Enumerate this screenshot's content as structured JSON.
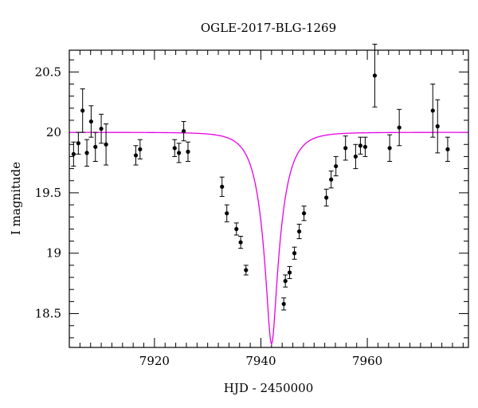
{
  "chart_data": {
    "type": "scatter",
    "title": "OGLE-2017-BLG-1269",
    "xlabel": "HJD - 2450000",
    "ylabel": "I magnitude",
    "xlim": [
      7904,
      7979
    ],
    "ylim": [
      20.68,
      18.22
    ],
    "y_inverted": true,
    "grid": false,
    "x_major_ticks": [
      7920,
      7940,
      7960
    ],
    "x_tick_labels": [
      "7920",
      "7940",
      "7960"
    ],
    "y_major_ticks": [
      18.5,
      19,
      19.5,
      20,
      20.5
    ],
    "y_tick_labels": [
      "18.5",
      "19",
      "19.5",
      "20",
      "20.5"
    ],
    "x_minor_step": 2,
    "y_minor_step": 0.1,
    "model_color": "#e600e6",
    "point_color": "#000000",
    "model": {
      "t0": 7942.0,
      "u0": 0.225,
      "tE": 3.6,
      "baseline": 20.0,
      "peak": 18.25
    },
    "points": [
      {
        "x": 7904.8,
        "y": 19.82,
        "err": 0.1
      },
      {
        "x": 7905.7,
        "y": 19.91,
        "err": 0.09
      },
      {
        "x": 7906.5,
        "y": 20.18,
        "err": 0.18
      },
      {
        "x": 7907.3,
        "y": 19.83,
        "err": 0.11
      },
      {
        "x": 7908.1,
        "y": 20.09,
        "err": 0.13
      },
      {
        "x": 7908.9,
        "y": 19.88,
        "err": 0.12
      },
      {
        "x": 7910.0,
        "y": 20.03,
        "err": 0.12
      },
      {
        "x": 7910.9,
        "y": 19.9,
        "err": 0.17
      },
      {
        "x": 7916.5,
        "y": 19.81,
        "err": 0.08
      },
      {
        "x": 7917.3,
        "y": 19.86,
        "err": 0.08
      },
      {
        "x": 7923.8,
        "y": 19.87,
        "err": 0.07
      },
      {
        "x": 7924.6,
        "y": 19.83,
        "err": 0.08
      },
      {
        "x": 7925.5,
        "y": 20.01,
        "err": 0.08
      },
      {
        "x": 7926.3,
        "y": 19.84,
        "err": 0.08
      },
      {
        "x": 7932.7,
        "y": 19.55,
        "err": 0.08
      },
      {
        "x": 7933.6,
        "y": 19.33,
        "err": 0.07
      },
      {
        "x": 7935.4,
        "y": 19.2,
        "err": 0.05
      },
      {
        "x": 7936.2,
        "y": 19.09,
        "err": 0.05
      },
      {
        "x": 7937.2,
        "y": 18.86,
        "err": 0.04
      },
      {
        "x": 7944.3,
        "y": 18.58,
        "err": 0.05
      },
      {
        "x": 7944.6,
        "y": 18.77,
        "err": 0.05
      },
      {
        "x": 7945.4,
        "y": 18.84,
        "err": 0.05
      },
      {
        "x": 7946.3,
        "y": 19.0,
        "err": 0.05
      },
      {
        "x": 7947.2,
        "y": 19.18,
        "err": 0.06
      },
      {
        "x": 7948.1,
        "y": 19.33,
        "err": 0.06
      },
      {
        "x": 7952.3,
        "y": 19.46,
        "err": 0.07
      },
      {
        "x": 7953.2,
        "y": 19.61,
        "err": 0.07
      },
      {
        "x": 7954.1,
        "y": 19.72,
        "err": 0.08
      },
      {
        "x": 7955.9,
        "y": 19.87,
        "err": 0.1
      },
      {
        "x": 7957.8,
        "y": 19.8,
        "err": 0.1
      },
      {
        "x": 7958.7,
        "y": 19.89,
        "err": 0.07
      },
      {
        "x": 7959.6,
        "y": 19.88,
        "err": 0.08
      },
      {
        "x": 7961.4,
        "y": 20.47,
        "err": 0.26
      },
      {
        "x": 7964.2,
        "y": 19.87,
        "err": 0.11
      },
      {
        "x": 7966.0,
        "y": 20.04,
        "err": 0.15
      },
      {
        "x": 7972.3,
        "y": 20.18,
        "err": 0.22
      },
      {
        "x": 7973.2,
        "y": 20.05,
        "err": 0.22
      },
      {
        "x": 7975.1,
        "y": 19.86,
        "err": 0.1
      }
    ]
  }
}
